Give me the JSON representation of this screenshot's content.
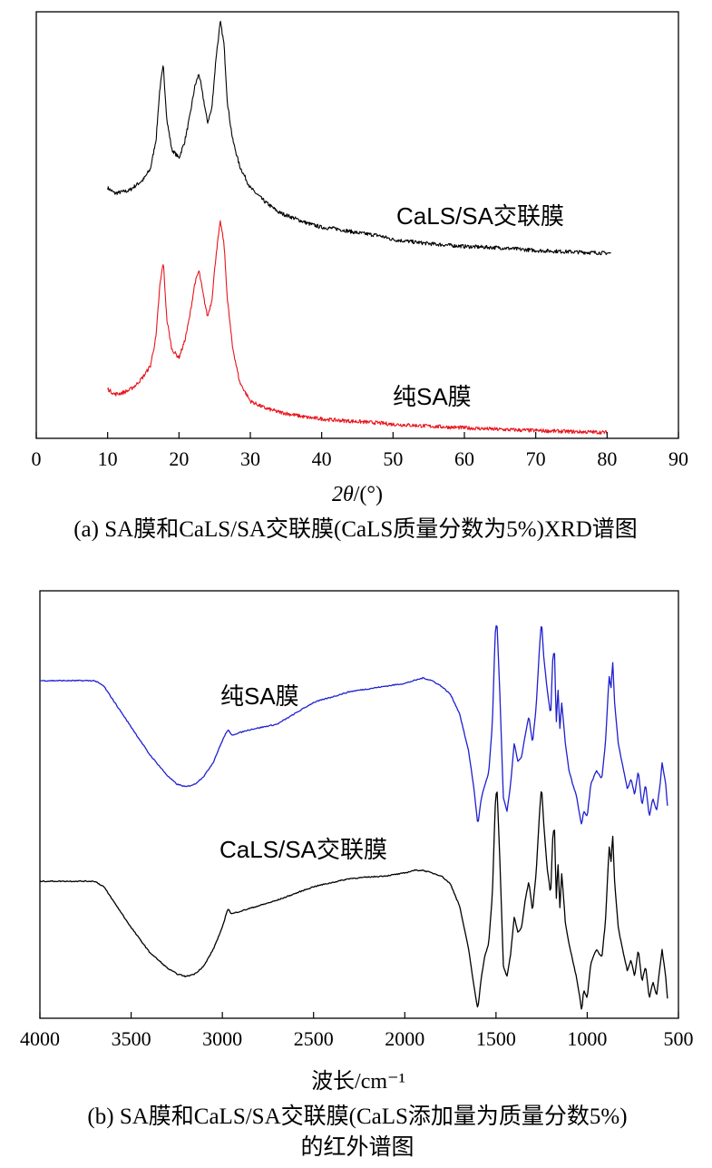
{
  "chart_data": [
    {
      "type": "line",
      "xlim": [
        0,
        90
      ],
      "xticks": [
        "0",
        "10",
        "20",
        "30",
        "40",
        "50",
        "60",
        "70",
        "80",
        "90"
      ],
      "xlabel_prefix": "2",
      "xlabel_theta": "θ",
      "xlabel_suffix": "/(°)",
      "caption": "(a) SA膜和CaLS/SA交联膜(CaLS质量分数为5%)XRD谱图",
      "grid": false,
      "y_ticks_shown": false,
      "series": [
        {
          "name": "CaLS/SA交联膜",
          "color": "#000000",
          "x": [
            10,
            11,
            12,
            13,
            14,
            15,
            16,
            16.8,
            17.3,
            17.8,
            18.3,
            19,
            20,
            20.8,
            21.5,
            22.2,
            22.8,
            23.4,
            24,
            24.6,
            25.2,
            25.8,
            26.3,
            26.8,
            27.5,
            28.5,
            30,
            32,
            34,
            36,
            38,
            40,
            42,
            45,
            48,
            50,
            55,
            60,
            65,
            70,
            75,
            80.5
          ],
          "y": [
            0.37,
            0.35,
            0.355,
            0.36,
            0.38,
            0.4,
            0.44,
            0.55,
            0.73,
            0.82,
            0.62,
            0.51,
            0.48,
            0.54,
            0.63,
            0.74,
            0.79,
            0.7,
            0.61,
            0.66,
            0.85,
            0.98,
            0.9,
            0.68,
            0.55,
            0.45,
            0.37,
            0.32,
            0.28,
            0.26,
            0.24,
            0.225,
            0.22,
            0.205,
            0.195,
            0.18,
            0.165,
            0.155,
            0.15,
            0.14,
            0.135,
            0.13
          ]
        },
        {
          "name": "纯SA膜",
          "color": "#e8141c",
          "x": [
            10,
            11,
            12,
            13,
            14,
            15,
            16,
            16.8,
            17.3,
            17.8,
            18.3,
            19,
            20,
            20.8,
            21.5,
            22.2,
            22.8,
            23.4,
            24,
            24.6,
            25.2,
            25.8,
            26.3,
            26.8,
            27.5,
            28.5,
            30,
            32,
            34,
            36,
            38,
            40,
            42,
            45,
            48,
            50,
            55,
            60,
            65,
            70,
            75,
            80
          ],
          "y": [
            0.165,
            0.145,
            0.15,
            0.16,
            0.18,
            0.21,
            0.25,
            0.36,
            0.54,
            0.63,
            0.42,
            0.31,
            0.28,
            0.34,
            0.43,
            0.55,
            0.6,
            0.51,
            0.43,
            0.49,
            0.66,
            0.78,
            0.7,
            0.49,
            0.32,
            0.19,
            0.12,
            0.095,
            0.08,
            0.07,
            0.06,
            0.055,
            0.05,
            0.045,
            0.04,
            0.035,
            0.028,
            0.022,
            0.016,
            0.012,
            0.008,
            0.005
          ]
        }
      ]
    },
    {
      "type": "line",
      "xlim": [
        4000,
        500
      ],
      "xticks": [
        "4000",
        "3500",
        "3000",
        "2500",
        "2000",
        "1500",
        "1000",
        "500"
      ],
      "xlabel": "波长/cm⁻¹",
      "caption_line1": "(b) SA膜和CaLS/SA交联膜(CaLS添加量为质量分数5%)",
      "caption_line2": "的红外谱图",
      "grid": false,
      "y_ticks_shown": false,
      "series": [
        {
          "name": "纯SA膜",
          "color": "#1f1fd0",
          "x": [
            4000,
            3700,
            3650,
            3600,
            3500,
            3400,
            3300,
            3250,
            3200,
            3150,
            3100,
            3050,
            3000,
            2970,
            2950,
            2900,
            2850,
            2700,
            2500,
            2300,
            2100,
            2000,
            1950,
            1900,
            1850,
            1800,
            1750,
            1700,
            1650,
            1620,
            1600,
            1580,
            1560,
            1540,
            1520,
            1505,
            1495,
            1480,
            1460,
            1440,
            1420,
            1400,
            1380,
            1360,
            1340,
            1320,
            1300,
            1280,
            1260,
            1250,
            1240,
            1220,
            1200,
            1190,
            1180,
            1170,
            1160,
            1150,
            1140,
            1120,
            1100,
            1080,
            1060,
            1040,
            1030,
            1020,
            1000,
            980,
            950,
            920,
            900,
            880,
            870,
            860,
            850,
            830,
            800,
            780,
            760,
            740,
            720,
            700,
            680,
            660,
            640,
            620,
            600,
            590,
            580,
            570,
            560
          ],
          "y": [
            0.78,
            0.78,
            0.76,
            0.71,
            0.61,
            0.51,
            0.43,
            0.4,
            0.39,
            0.4,
            0.43,
            0.48,
            0.56,
            0.6,
            0.58,
            0.59,
            0.6,
            0.62,
            0.7,
            0.74,
            0.76,
            0.77,
            0.78,
            0.79,
            0.78,
            0.76,
            0.73,
            0.66,
            0.52,
            0.38,
            0.25,
            0.35,
            0.4,
            0.44,
            0.62,
            0.95,
            1.0,
            0.75,
            0.35,
            0.3,
            0.4,
            0.55,
            0.48,
            0.5,
            0.58,
            0.65,
            0.55,
            0.68,
            0.92,
            1.0,
            0.88,
            0.75,
            0.65,
            0.85,
            0.9,
            0.62,
            0.75,
            0.6,
            0.7,
            0.55,
            0.45,
            0.4,
            0.36,
            0.28,
            0.25,
            0.3,
            0.28,
            0.4,
            0.45,
            0.42,
            0.55,
            0.8,
            0.75,
            0.85,
            0.7,
            0.55,
            0.45,
            0.38,
            0.42,
            0.36,
            0.45,
            0.32,
            0.4,
            0.28,
            0.35,
            0.3,
            0.4,
            0.48,
            0.44,
            0.4,
            0.32
          ]
        },
        {
          "name": "CaLS/SA交联膜",
          "color": "#000000",
          "x": [
            4000,
            3700,
            3650,
            3600,
            3500,
            3400,
            3300,
            3250,
            3200,
            3150,
            3100,
            3050,
            3000,
            2970,
            2950,
            2900,
            2850,
            2700,
            2500,
            2300,
            2100,
            2000,
            1950,
            1900,
            1850,
            1800,
            1750,
            1700,
            1650,
            1620,
            1600,
            1580,
            1560,
            1540,
            1520,
            1505,
            1495,
            1480,
            1460,
            1440,
            1420,
            1400,
            1380,
            1360,
            1340,
            1320,
            1300,
            1280,
            1260,
            1250,
            1240,
            1220,
            1200,
            1190,
            1180,
            1170,
            1160,
            1150,
            1140,
            1120,
            1100,
            1080,
            1060,
            1040,
            1030,
            1020,
            1000,
            980,
            950,
            920,
            900,
            880,
            870,
            860,
            850,
            830,
            800,
            780,
            760,
            740,
            720,
            700,
            680,
            660,
            640,
            620,
            600,
            590,
            580,
            570,
            560
          ],
          "y": [
            0.45,
            0.45,
            0.43,
            0.38,
            0.28,
            0.19,
            0.13,
            0.11,
            0.1,
            0.11,
            0.14,
            0.2,
            0.28,
            0.35,
            0.33,
            0.34,
            0.35,
            0.38,
            0.43,
            0.46,
            0.47,
            0.48,
            0.49,
            0.49,
            0.48,
            0.47,
            0.44,
            0.36,
            0.2,
            0.06,
            -0.02,
            0.1,
            0.18,
            0.22,
            0.4,
            0.72,
            0.8,
            0.55,
            0.14,
            0.1,
            0.18,
            0.32,
            0.26,
            0.28,
            0.38,
            0.45,
            0.34,
            0.48,
            0.72,
            0.8,
            0.68,
            0.5,
            0.4,
            0.6,
            0.66,
            0.38,
            0.52,
            0.35,
            0.48,
            0.3,
            0.22,
            0.16,
            0.1,
            0.02,
            -0.03,
            0.05,
            0.02,
            0.15,
            0.2,
            0.17,
            0.3,
            0.58,
            0.52,
            0.62,
            0.45,
            0.28,
            0.18,
            0.12,
            0.16,
            0.1,
            0.2,
            0.08,
            0.14,
            0.02,
            0.08,
            0.03,
            0.14,
            0.2,
            0.15,
            0.1,
            0.02
          ]
        }
      ]
    }
  ]
}
